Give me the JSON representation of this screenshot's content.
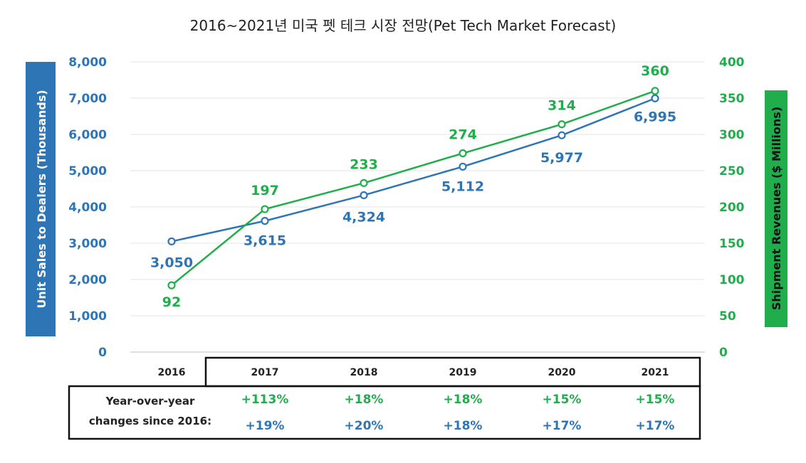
{
  "chart_data": {
    "type": "line",
    "title": "2016~2021년 미국 펫 테크 시장 전망(Pet Tech Market Forecast)",
    "categories": [
      "2016",
      "2017",
      "2018",
      "2019",
      "2020",
      "2021"
    ],
    "y_left": {
      "label": "Unit Sales to Dealers (Thousands)",
      "range": [
        0,
        8000
      ],
      "ticks": [
        "0",
        "1,000",
        "2,000",
        "3,000",
        "4,000",
        "5,000",
        "6,000",
        "7,000",
        "8,000"
      ],
      "color": "#2e75b6"
    },
    "y_right": {
      "label": "Shipment Revenues ($ Millions)",
      "range": [
        0,
        400
      ],
      "ticks": [
        "0",
        "50",
        "100",
        "150",
        "200",
        "250",
        "300",
        "350",
        "400"
      ],
      "color": "#1fae4b"
    },
    "grid": true,
    "series": [
      {
        "axis": "left",
        "color": "#2e75b6",
        "values": [
          3050,
          3615,
          4324,
          5112,
          5977,
          6995
        ],
        "labels": [
          "3,050",
          "3,615",
          "4,324",
          "5,112",
          "5,977",
          "6,995"
        ]
      },
      {
        "axis": "right",
        "color": "#1fae4b",
        "values": [
          92,
          197,
          233,
          274,
          314,
          360
        ],
        "labels": [
          "92",
          "197",
          "233",
          "274",
          "314",
          "360"
        ]
      }
    ],
    "yoy_table": {
      "label_line1": "Year-over-year",
      "label_line2": "changes since 2016:",
      "revenue_changes": [
        "+113%",
        "+18%",
        "+18%",
        "+15%",
        "+15%"
      ],
      "unit_changes": [
        "+19%",
        "+20%",
        "+18%",
        "+17%",
        "+17%"
      ]
    }
  }
}
